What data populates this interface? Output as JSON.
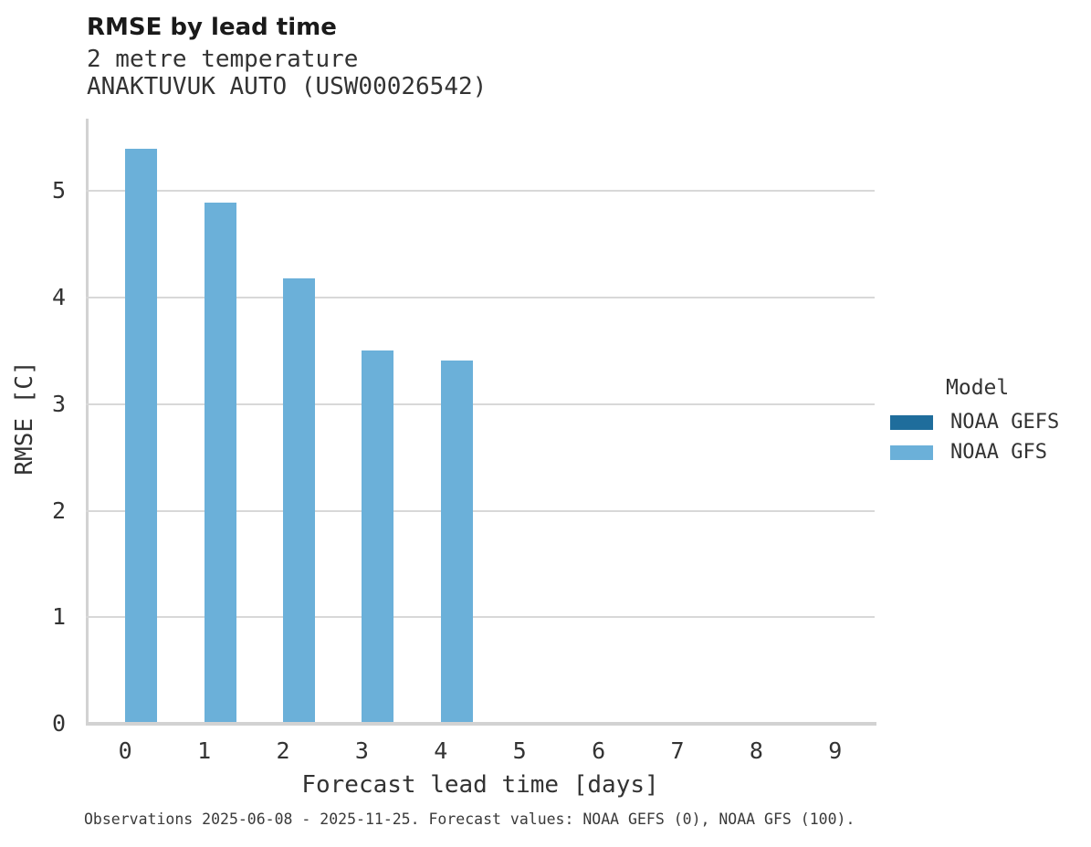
{
  "chart_data": {
    "type": "bar",
    "title": "RMSE by lead time",
    "subtitle": [
      "2 metre temperature",
      "ANAKTUVUK AUTO (USW00026542)"
    ],
    "xlabel": "Forecast lead time [days]",
    "ylabel": "RMSE [C]",
    "categories": [
      "0",
      "1",
      "2",
      "3",
      "4",
      "5",
      "6",
      "7",
      "8",
      "9"
    ],
    "series": [
      {
        "name": "NOAA GEFS",
        "color": "#1f6d9c",
        "values": [
          null,
          null,
          null,
          null,
          null,
          null,
          null,
          null,
          null,
          null
        ]
      },
      {
        "name": "NOAA GFS",
        "color": "#6bb0d9",
        "values": [
          5.4,
          4.89,
          4.18,
          3.5,
          3.41,
          null,
          null,
          null,
          null,
          null
        ]
      }
    ],
    "ylim": [
      0,
      5.68
    ],
    "yticks": [
      0,
      1,
      2,
      3,
      4,
      5
    ],
    "grid": true,
    "legend_title": "Model",
    "legend_position": "right"
  },
  "colors": {
    "grid": "#d8d8d8",
    "spine": "#d2d2d2",
    "text": "#333333",
    "title": "#1a1a1a"
  },
  "footnote": "Observations 2025-06-08 - 2025-11-25. Forecast values: NOAA GEFS (0), NOAA GFS (100)."
}
